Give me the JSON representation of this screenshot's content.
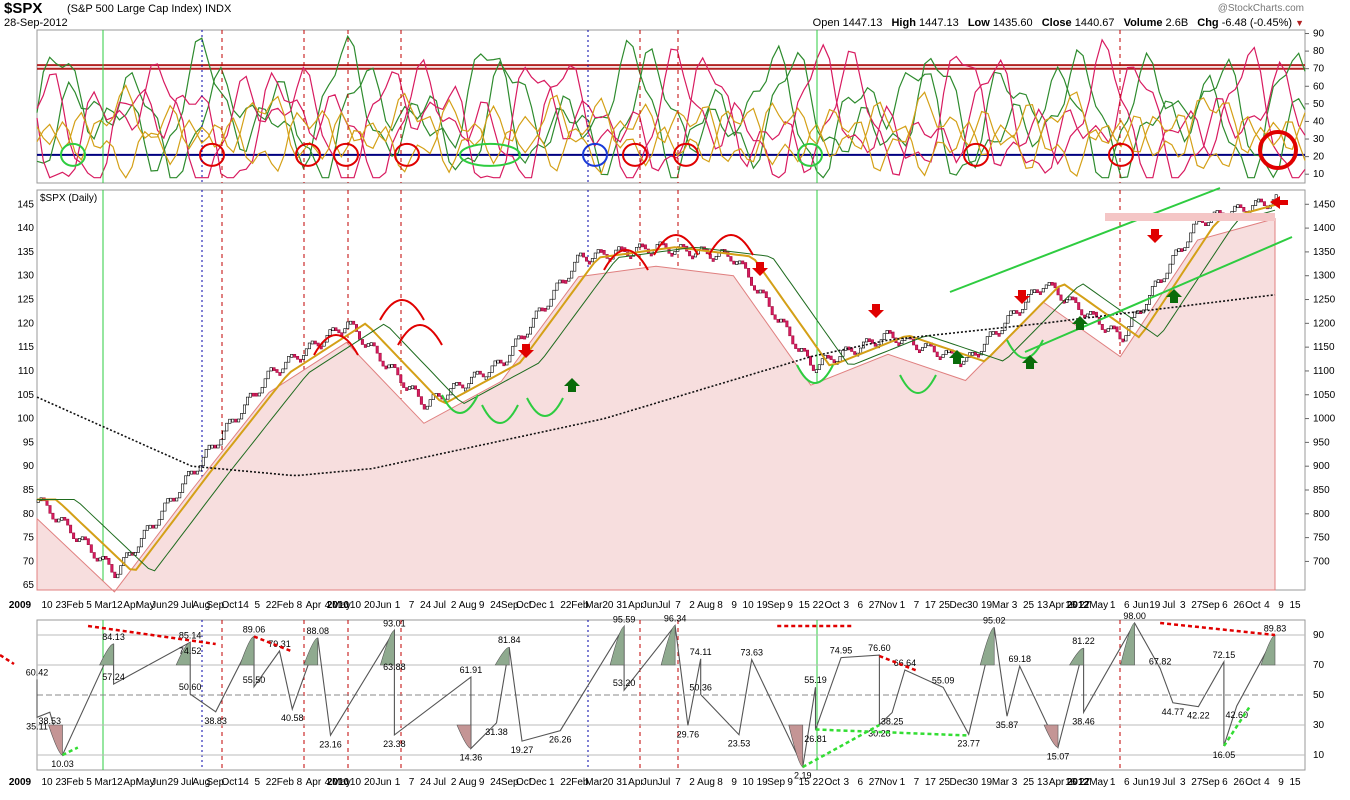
{
  "header": {
    "symbol": "$SPX",
    "description": "(S&P 500 Large Cap Index)",
    "exchange": "INDX",
    "date": "28-Sep-2012",
    "watermark": "@StockCharts.com",
    "open_label": "Open",
    "open": "1447.13",
    "high_label": "High",
    "high": "1447.13",
    "low_label": "Low",
    "low": "1435.60",
    "close_label": "Close",
    "close": "1440.67",
    "volume_label": "Volume",
    "volume": "2.6B",
    "chg_label": "Chg",
    "chg": "-6.48 (-0.45%)",
    "chg_arrow": "▼"
  },
  "chart_data": [
    {
      "type": "line",
      "panel": "stochastic-oscillators",
      "ylim": [
        5,
        92
      ],
      "y_ticks": [
        10,
        20,
        30,
        40,
        50,
        60,
        70,
        80,
        90
      ],
      "series_colors": [
        "#2e8b2e",
        "#d81b60",
        "#d4a017"
      ],
      "reference_lines": [
        {
          "y": 72,
          "color": "#b22222"
        },
        {
          "y": 70,
          "color": "#b22222"
        },
        {
          "y": 21,
          "color": "#000080"
        }
      ]
    },
    {
      "type": "line",
      "panel": "price",
      "title": "$SPX (Daily)",
      "ylim": [
        640,
        1480
      ],
      "y_ticks_right": [
        700,
        750,
        800,
        850,
        900,
        950,
        1000,
        1050,
        1100,
        1150,
        1200,
        1250,
        1300,
        1350,
        1400,
        1450
      ],
      "y_ticks_left": [
        65,
        70,
        75,
        80,
        85,
        90,
        95,
        100,
        105,
        110,
        115,
        120,
        125,
        130,
        135,
        140,
        145
      ],
      "x_ticks": [
        "10",
        "23",
        "Feb",
        "5",
        "Mar",
        "12",
        "Apr",
        "May",
        "Jun",
        "29",
        "Jul",
        "Aug",
        "Sep",
        "Oct",
        "14",
        "5",
        "22",
        "Feb",
        "8",
        "Apr",
        "4",
        "May",
        "10",
        "20",
        "Jun",
        "1",
        "7",
        "24",
        "Jul",
        "2",
        "Aug",
        "9",
        "24",
        "Sep",
        "Oct",
        "Dec",
        "1",
        "22",
        "Feb",
        "Mar",
        "20",
        "31",
        "Apr",
        "Jun",
        "Jul",
        "7",
        "2",
        "Aug",
        "8",
        "9",
        "10",
        "19",
        "Sep",
        "9",
        "15",
        "22",
        "Oct",
        "3",
        "6",
        "27",
        "Nov",
        "1",
        "7",
        "17",
        "25",
        "Dec",
        "30",
        "19",
        "Mar",
        "3",
        "25",
        "13",
        "Apr",
        "16",
        "27",
        "May",
        "1",
        "6",
        "Jun",
        "19",
        "Jul",
        "3",
        "27",
        "Sep",
        "6",
        "26",
        "Oct",
        "4",
        "9",
        "15"
      ],
      "year_labels": [
        "2009",
        "2010",
        "2012"
      ],
      "series": [
        {
          "name": "close",
          "color": "#000000",
          "x": [
            0,
            6,
            12,
            18,
            24,
            30,
            36,
            42,
            48,
            54,
            60,
            66,
            72,
            78,
            84,
            90,
            96
          ],
          "y": [
            830,
            676,
            890,
            1095,
            1200,
            1030,
            1118,
            1338,
            1360,
            1340,
            1110,
            1175,
            1120,
            1285,
            1170,
            1415,
            1460
          ]
        },
        {
          "name": "ma-200",
          "color": "#111111",
          "x": [
            0,
            12,
            20,
            26,
            44,
            60,
            66,
            78,
            96
          ],
          "y": [
            1045,
            900,
            880,
            895,
            1000,
            1130,
            1165,
            1200,
            1260
          ]
        }
      ]
    },
    {
      "type": "line",
      "panel": "oscillator-ppo",
      "ylim": [
        0,
        100
      ],
      "y_ticks": [
        10,
        30,
        50,
        70,
        90
      ],
      "peak_labels": [
        "60.42",
        "38.53",
        "35.11",
        "10.03",
        "84.13",
        "57.24",
        "85.14",
        "74.52",
        "50.60",
        "38.83",
        "89.06",
        "79.31",
        "55.50",
        "88.08",
        "40.58",
        "23.16",
        "93.01",
        "63.88",
        "23.38",
        "61.91",
        "14.36",
        "31.38",
        "81.84",
        "19.27",
        "26.26",
        "95.59",
        "96.34",
        "53.20",
        "74.11",
        "50.36",
        "29.76",
        "73.63",
        "23.53",
        "55.19",
        "74.95",
        "76.60",
        "66.64",
        "30.28",
        "38.25",
        "55.09",
        "26.81",
        "2.19",
        "95.02",
        "69.18",
        "23.77",
        "35.87",
        "81.22",
        "15.07",
        "38.46",
        "98.00",
        "67.82",
        "72.15",
        "89.83",
        "42.22",
        "44.77",
        "42.60",
        "16.05"
      ],
      "peak_x": [
        0,
        1,
        0,
        2,
        6,
        6,
        12,
        12,
        12,
        14,
        17,
        19,
        17,
        22,
        20,
        23,
        28,
        28,
        28,
        34,
        34,
        36,
        37,
        38,
        41,
        46,
        50,
        46,
        52,
        52,
        51,
        56,
        55,
        61,
        63,
        66,
        68,
        66,
        67,
        71,
        61,
        60,
        75,
        77,
        73,
        76,
        82,
        80,
        82,
        86,
        88,
        93,
        97,
        91,
        89,
        94,
        93
      ],
      "peak_y": [
        60.42,
        38.53,
        35.11,
        10.03,
        84.13,
        57.24,
        85.14,
        74.52,
        50.6,
        38.83,
        89.06,
        79.31,
        55.5,
        88.08,
        40.58,
        23.16,
        93.01,
        63.88,
        23.38,
        61.91,
        14.36,
        31.38,
        81.84,
        19.27,
        26.26,
        95.59,
        96.34,
        53.2,
        74.11,
        50.36,
        29.76,
        73.63,
        23.53,
        55.19,
        74.95,
        76.6,
        66.64,
        30.28,
        38.25,
        55.09,
        26.81,
        2.19,
        95.02,
        69.18,
        23.77,
        35.87,
        81.22,
        15.07,
        38.46,
        98.0,
        67.82,
        72.15,
        89.83,
        42.22,
        44.77,
        42.6,
        16.05
      ]
    }
  ]
}
